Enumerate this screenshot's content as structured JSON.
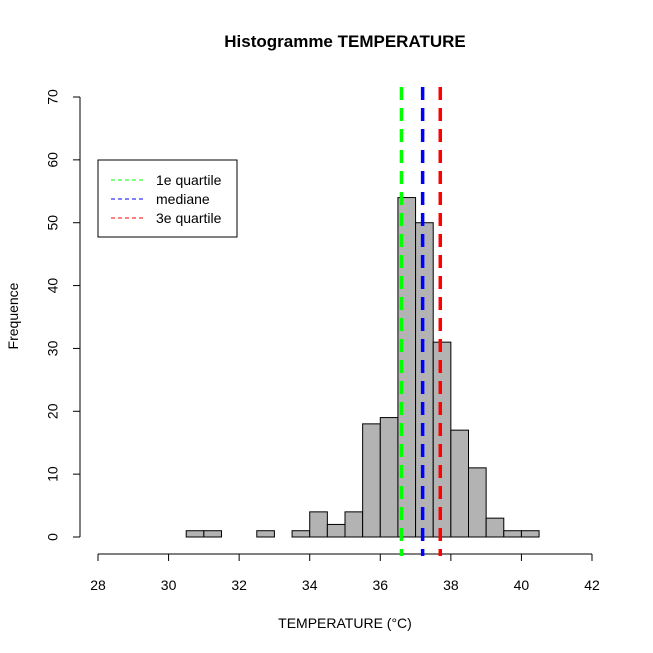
{
  "chart_data": {
    "type": "bar",
    "title": "Histogramme  TEMPERATURE",
    "xlabel": "TEMPERATURE (°C)",
    "ylabel": "Frequence",
    "xlim": [
      28,
      42
    ],
    "ylim": [
      0,
      70
    ],
    "x_ticks": [
      28,
      30,
      32,
      34,
      36,
      38,
      40,
      42
    ],
    "y_ticks": [
      0,
      10,
      20,
      30,
      40,
      50,
      60,
      70
    ],
    "bin_width": 0.5,
    "bins": [
      {
        "start": 28.0,
        "count": 0
      },
      {
        "start": 28.5,
        "count": 0
      },
      {
        "start": 29.0,
        "count": 0
      },
      {
        "start": 29.5,
        "count": 0
      },
      {
        "start": 30.0,
        "count": 0
      },
      {
        "start": 30.5,
        "count": 1
      },
      {
        "start": 31.0,
        "count": 1
      },
      {
        "start": 31.5,
        "count": 0
      },
      {
        "start": 32.0,
        "count": 0
      },
      {
        "start": 32.5,
        "count": 1
      },
      {
        "start": 33.0,
        "count": 0
      },
      {
        "start": 33.5,
        "count": 1
      },
      {
        "start": 34.0,
        "count": 4
      },
      {
        "start": 34.5,
        "count": 2
      },
      {
        "start": 35.0,
        "count": 4
      },
      {
        "start": 35.5,
        "count": 18
      },
      {
        "start": 36.0,
        "count": 19
      },
      {
        "start": 36.5,
        "count": 54
      },
      {
        "start": 37.0,
        "count": 50
      },
      {
        "start": 37.5,
        "count": 31
      },
      {
        "start": 38.0,
        "count": 17
      },
      {
        "start": 38.5,
        "count": 11
      },
      {
        "start": 39.0,
        "count": 3
      },
      {
        "start": 39.5,
        "count": 1
      },
      {
        "start": 40.0,
        "count": 1
      },
      {
        "start": 40.5,
        "count": 0
      },
      {
        "start": 41.0,
        "count": 0
      },
      {
        "start": 41.5,
        "count": 0
      }
    ],
    "bar_fill": "#b3b3b3",
    "reference_lines": [
      {
        "name": "1e quartile",
        "value": 36.6,
        "color": "#00ff00"
      },
      {
        "name": "mediane",
        "value": 37.2,
        "color": "#0000ff"
      },
      {
        "name": "3e quartile",
        "value": 37.7,
        "color": "#ff0000"
      }
    ],
    "legend_position": "top-left",
    "grid": false
  }
}
